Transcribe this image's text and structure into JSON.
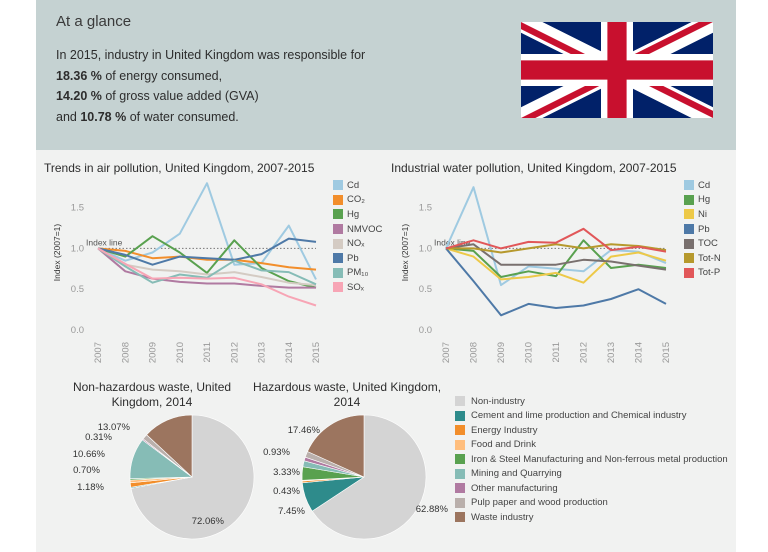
{
  "glance": {
    "title": "At a glance",
    "intro": "In 2015, industry in United Kingdom was responsible for",
    "energy_value": "18.36 %",
    "energy_text": " of energy consumed,",
    "gva_value": "14.20 %",
    "gva_text": " of gross value added (GVA)",
    "water_prefix": "and ",
    "water_value": "10.78 %",
    "water_text": " of water consumed."
  },
  "flag": {
    "icon": "united-kingdom-flag",
    "blue": "#012169",
    "red": "#C8102E",
    "white": "#FFFFFF"
  },
  "chart_data": [
    {
      "type": "line",
      "title": "Trends in air pollution, United Kingdom, 2007-2015",
      "ylabel": "Index (2007=1)",
      "xlabel": "",
      "ylim": [
        0,
        1.9
      ],
      "yticks": [
        "0.0",
        "0.5",
        "1.0",
        "1.5"
      ],
      "x": [
        "2007",
        "2008",
        "2009",
        "2010",
        "2011",
        "2012",
        "2013",
        "2014",
        "2015"
      ],
      "reference_line": {
        "y": 1.0,
        "label": "Index line"
      },
      "series": [
        {
          "name": "Cd",
          "color": "#9fcae1",
          "values": [
            1.0,
            0.85,
            0.95,
            1.18,
            1.8,
            0.8,
            0.82,
            1.28,
            0.62
          ]
        },
        {
          "name": "CO₂",
          "color": "#f28e2b",
          "values": [
            1.0,
            0.97,
            0.88,
            0.9,
            0.86,
            0.86,
            0.82,
            0.77,
            0.74
          ]
        },
        {
          "name": "Hg",
          "color": "#59a14f",
          "values": [
            1.0,
            0.9,
            1.15,
            0.95,
            0.7,
            1.1,
            0.76,
            0.6,
            0.52
          ]
        },
        {
          "name": "NMVOC",
          "color": "#b07aa1",
          "values": [
            1.0,
            0.72,
            0.63,
            0.59,
            0.57,
            0.57,
            0.54,
            0.52,
            0.52
          ]
        },
        {
          "name": "NOₓ",
          "color": "#d4cbc3",
          "values": [
            1.0,
            0.8,
            0.74,
            0.72,
            0.68,
            0.71,
            0.65,
            0.58,
            0.55
          ]
        },
        {
          "name": "Pb",
          "color": "#4e79a7",
          "values": [
            1.0,
            0.92,
            0.8,
            0.9,
            0.88,
            0.86,
            0.93,
            1.12,
            1.08
          ]
        },
        {
          "name": "PM₁₀",
          "color": "#86bcb6",
          "values": [
            1.0,
            0.78,
            0.58,
            0.68,
            0.64,
            0.85,
            0.73,
            0.71,
            0.56
          ]
        },
        {
          "name": "SOₓ",
          "color": "#f7a5b5",
          "values": [
            1.0,
            0.81,
            0.63,
            0.64,
            0.63,
            0.64,
            0.56,
            0.41,
            0.3
          ]
        }
      ]
    },
    {
      "type": "line",
      "title": "Industrial water pollution, United Kingdom, 2007-2015",
      "ylabel": "Index (2007=1)",
      "xlabel": "",
      "ylim": [
        0,
        1.9
      ],
      "yticks": [
        "0.0",
        "0.5",
        "1.0",
        "1.5"
      ],
      "x": [
        "2007",
        "2008",
        "2009",
        "2010",
        "2011",
        "2012",
        "2013",
        "2014",
        "2015"
      ],
      "reference_line": {
        "y": 1.0,
        "label": "Index line"
      },
      "series": [
        {
          "name": "Cd",
          "color": "#9fcae1",
          "values": [
            1.0,
            1.75,
            0.55,
            0.78,
            0.75,
            0.72,
            0.98,
            0.96,
            0.82
          ]
        },
        {
          "name": "Hg",
          "color": "#59a14f",
          "values": [
            1.0,
            0.97,
            0.65,
            0.72,
            0.66,
            1.1,
            0.76,
            0.8,
            0.76
          ]
        },
        {
          "name": "Ni",
          "color": "#edc948",
          "values": [
            1.0,
            0.9,
            0.62,
            0.65,
            0.7,
            0.58,
            0.9,
            0.95,
            0.85
          ]
        },
        {
          "name": "Pb",
          "color": "#4e79a7",
          "values": [
            1.0,
            0.6,
            0.18,
            0.32,
            0.27,
            0.3,
            0.38,
            0.5,
            0.32
          ]
        },
        {
          "name": "TOC",
          "color": "#79706e",
          "values": [
            1.0,
            1.05,
            0.8,
            0.8,
            0.8,
            0.86,
            0.84,
            0.79,
            0.74
          ]
        },
        {
          "name": "Tot-N",
          "color": "#b6992d",
          "values": [
            1.0,
            1.0,
            0.95,
            1.0,
            1.05,
            1.0,
            1.05,
            1.03,
            0.98
          ]
        },
        {
          "name": "Tot-P",
          "color": "#e15759",
          "values": [
            1.0,
            1.1,
            1.0,
            1.08,
            1.07,
            1.24,
            0.98,
            1.02,
            0.96
          ]
        }
      ]
    },
    {
      "type": "pie",
      "title": "Non-hazardous waste, United Kingdom, 2014",
      "slices": [
        {
          "category": "Non-industry",
          "value": 72.06,
          "label": "72.06%",
          "color": "#d4d4d4"
        },
        {
          "category": "Cement and lime production and Chemical industry",
          "value": 0.27,
          "label": "",
          "color": "#2e8b8b"
        },
        {
          "category": "Energy Industry",
          "value": 1.18,
          "label": "1.18%",
          "color": "#f28e2b"
        },
        {
          "category": "Food and Drink",
          "value": 0.7,
          "label": "0.70%",
          "color": "#ffbe7d"
        },
        {
          "category": "Iron & Steel Manufacturing and Non-ferrous metal production",
          "value": 0.35,
          "label": "",
          "color": "#59a14f"
        },
        {
          "category": "Mining and Quarrying",
          "value": 10.66,
          "label": "10.66%",
          "color": "#86bcb6"
        },
        {
          "category": "Other manufacturing",
          "value": 0.31,
          "label": "0.31%",
          "color": "#b07aa1"
        },
        {
          "category": "Pulp paper and wood production",
          "value": 1.4,
          "label": "",
          "color": "#bab0ac"
        },
        {
          "category": "Waste industry",
          "value": 13.07,
          "label": "13.07%",
          "color": "#9c755f"
        }
      ]
    },
    {
      "type": "pie",
      "title": "Hazardous waste, United Kingdom, 2014",
      "slices": [
        {
          "category": "Non-industry",
          "value": 62.88,
          "label": "62.88%",
          "color": "#d4d4d4"
        },
        {
          "category": "Cement and lime production and Chemical industry",
          "value": 7.45,
          "label": "7.45%",
          "color": "#2e8b8b"
        },
        {
          "category": "Energy Industry",
          "value": 0.43,
          "label": "0.43%",
          "color": "#f28e2b"
        },
        {
          "category": "Food and Drink",
          "value": 0.2,
          "label": "",
          "color": "#ffbe7d"
        },
        {
          "category": "Iron & Steel Manufacturing and Non-ferrous metal production",
          "value": 3.33,
          "label": "3.33%",
          "color": "#59a14f"
        },
        {
          "category": "Mining and Quarrying",
          "value": 1.5,
          "label": "",
          "color": "#86bcb6"
        },
        {
          "category": "Other manufacturing",
          "value": 0.93,
          "label": "0.93%",
          "color": "#b07aa1"
        },
        {
          "category": "Pulp paper and wood production",
          "value": 1.5,
          "label": "",
          "color": "#bab0ac"
        },
        {
          "category": "Waste industry",
          "value": 17.46,
          "label": "17.46%",
          "color": "#9c755f"
        }
      ]
    }
  ],
  "waste_legend": [
    {
      "label": "Non-industry",
      "color": "#d4d4d4"
    },
    {
      "label": "Cement and lime production and Chemical industry",
      "color": "#2e8b8b"
    },
    {
      "label": "Energy Industry",
      "color": "#f28e2b"
    },
    {
      "label": "Food and Drink",
      "color": "#ffbe7d"
    },
    {
      "label": "Iron & Steel Manufacturing and Non-ferrous metal production",
      "color": "#59a14f"
    },
    {
      "label": "Mining and Quarrying",
      "color": "#86bcb6"
    },
    {
      "label": "Other manufacturing",
      "color": "#b07aa1"
    },
    {
      "label": "Pulp paper and wood production",
      "color": "#bab0ac"
    },
    {
      "label": "Waste industry",
      "color": "#9c755f"
    }
  ]
}
